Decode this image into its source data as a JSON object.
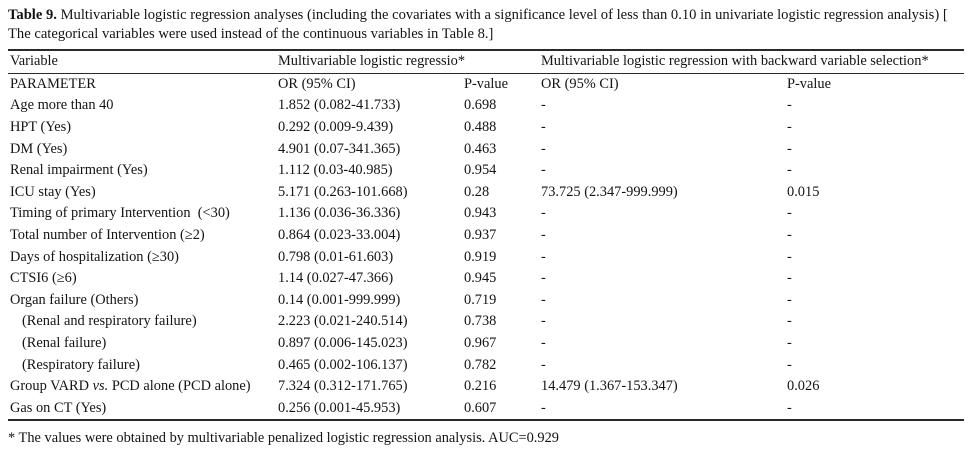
{
  "caption": {
    "label": "Table 9.",
    "text": " Multivariable logistic regression analyses (including the covariates with a significance level of less than 0.10 in univariate logistic regression analysis) [ The categorical variables were used instead of the continuous variables in Table 8.]"
  },
  "table": {
    "group_headers": {
      "variable": "Variable",
      "model1": "Multivariable logistic regressio*",
      "model2": "Multivariable logistic regression with backward variable selection*"
    },
    "column_headers": {
      "parameter": "PARAMETER",
      "or1": "OR (95% CI)",
      "p1": "P-value",
      "or2": "OR (95% CI)",
      "p2": "P-value"
    },
    "rows": [
      {
        "parameter": "Age more than 40",
        "indent": false,
        "or1": "1.852 (0.082-41.733)",
        "p1": "0.698",
        "or2": "-",
        "p2": "-"
      },
      {
        "parameter": "HPT (Yes)",
        "indent": false,
        "or1": "0.292 (0.009-9.439)",
        "p1": "0.488",
        "or2": "-",
        "p2": "-"
      },
      {
        "parameter": "DM (Yes)",
        "indent": false,
        "or1": "4.901 (0.07-341.365)",
        "p1": "0.463",
        "or2": "-",
        "p2": "-"
      },
      {
        "parameter": "Renal impairment (Yes)",
        "indent": false,
        "or1": "1.112 (0.03-40.985)",
        "p1": "0.954",
        "or2": "-",
        "p2": "-"
      },
      {
        "parameter": "ICU stay (Yes)",
        "indent": false,
        "or1": "5.171 (0.263-101.668)",
        "p1": "0.28",
        "or2": "73.725 (2.347-999.999)",
        "p2": "0.015"
      },
      {
        "parameter": "Timing of primary Intervention  (<30)",
        "indent": false,
        "or1": "1.136 (0.036-36.336)",
        "p1": "0.943",
        "or2": "-",
        "p2": "-"
      },
      {
        "parameter": "Total number of Intervention (≥2)",
        "indent": false,
        "or1": "0.864 (0.023-33.004)",
        "p1": "0.937",
        "or2": "-",
        "p2": "-"
      },
      {
        "parameter": "Days of hospitalization (≥30)",
        "indent": false,
        "or1": "0.798 (0.01-61.603)",
        "p1": "0.919",
        "or2": "-",
        "p2": "-"
      },
      {
        "parameter": "CTSI6 (≥6)",
        "indent": false,
        "or1": "1.14 (0.027-47.366)",
        "p1": "0.945",
        "or2": "-",
        "p2": "-"
      },
      {
        "parameter": "Organ failure (Others)",
        "indent": false,
        "or1": "0.14 (0.001-999.999)",
        "p1": "0.719",
        "or2": "-",
        "p2": "-"
      },
      {
        "parameter": "(Renal and respiratory failure)",
        "indent": true,
        "or1": "2.223 (0.021-240.514)",
        "p1": "0.738",
        "or2": "-",
        "p2": "-"
      },
      {
        "parameter": "(Renal failure)",
        "indent": true,
        "or1": "0.897 (0.006-145.023)",
        "p1": "0.967",
        "or2": "-",
        "p2": "-"
      },
      {
        "parameter": "(Respiratory failure)",
        "indent": true,
        "or1": "0.465 (0.002-106.137)",
        "p1": "0.782",
        "or2": "-",
        "p2": "-"
      },
      {
        "parameter": "Group VARD vs. PCD alone (PCD alone)",
        "italic": "vs.",
        "indent": false,
        "or1": "7.324 (0.312-171.765)",
        "p1": "0.216",
        "or2": "14.479 (1.367-153.347)",
        "p2": "0.026"
      },
      {
        "parameter": "Gas on CT (Yes)",
        "indent": false,
        "or1": "0.256 (0.001-45.953)",
        "p1": "0.607",
        "or2": "-",
        "p2": "-"
      }
    ]
  },
  "footnote": "* The values were obtained by multivariable penalized logistic regression analysis. AUC=0.929"
}
